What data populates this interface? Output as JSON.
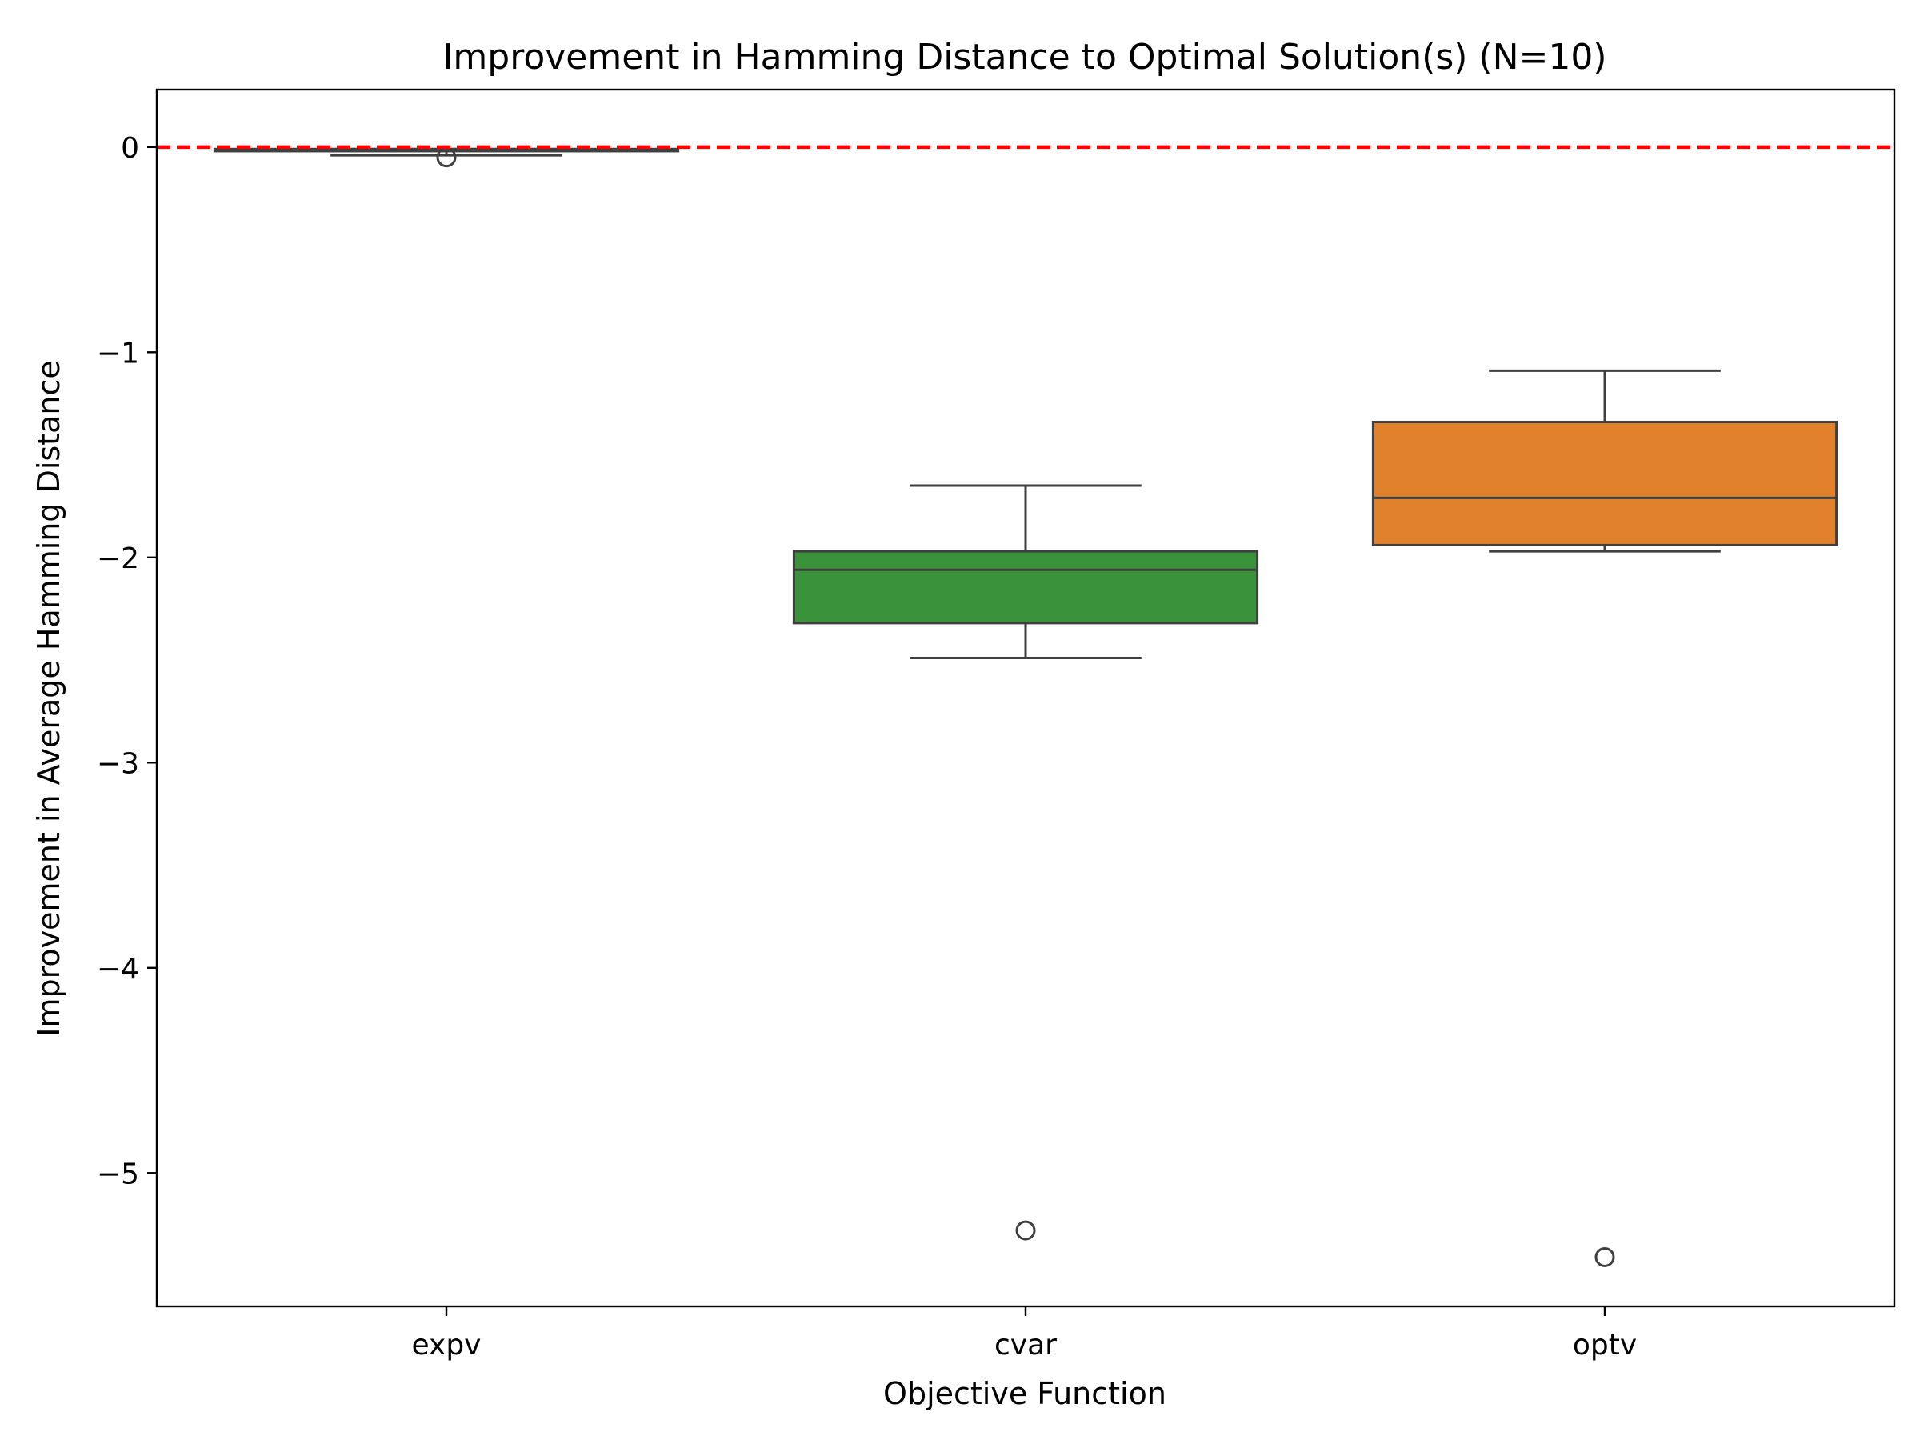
{
  "chart_data": {
    "type": "box",
    "title": "Improvement in Hamming Distance to Optimal Solution(s) (N=10)",
    "xlabel": "Objective Function",
    "ylabel": "Improvement in Average Hamming Distance",
    "categories": [
      "expv",
      "cvar",
      "optv"
    ],
    "ylim": [
      -5.65,
      0.28
    ],
    "yticks": [
      0,
      -1,
      -2,
      -3,
      -4,
      -5
    ],
    "ytick_labels": [
      "0",
      "−1",
      "−2",
      "−3",
      "−4",
      "−5"
    ],
    "reference_line": {
      "y": 0,
      "color": "#ff0000",
      "style": "dashed"
    },
    "grid": false,
    "boxes": [
      {
        "category": "expv",
        "color": "#1f77b4",
        "whisker_low": -0.04,
        "q1": -0.02,
        "median": -0.01,
        "q3": -0.01,
        "whisker_high": -0.01,
        "outliers": [
          -0.05
        ]
      },
      {
        "category": "cvar",
        "color": "#3a923a",
        "whisker_low": -2.49,
        "q1": -2.32,
        "median": -2.06,
        "q3": -1.97,
        "whisker_high": -1.65,
        "outliers": [
          -5.28
        ]
      },
      {
        "category": "optv",
        "color": "#e1812c",
        "whisker_low": -1.97,
        "q1": -1.94,
        "median": -1.71,
        "q3": -1.34,
        "whisker_high": -1.09,
        "outliers": [
          -5.41
        ]
      }
    ]
  }
}
